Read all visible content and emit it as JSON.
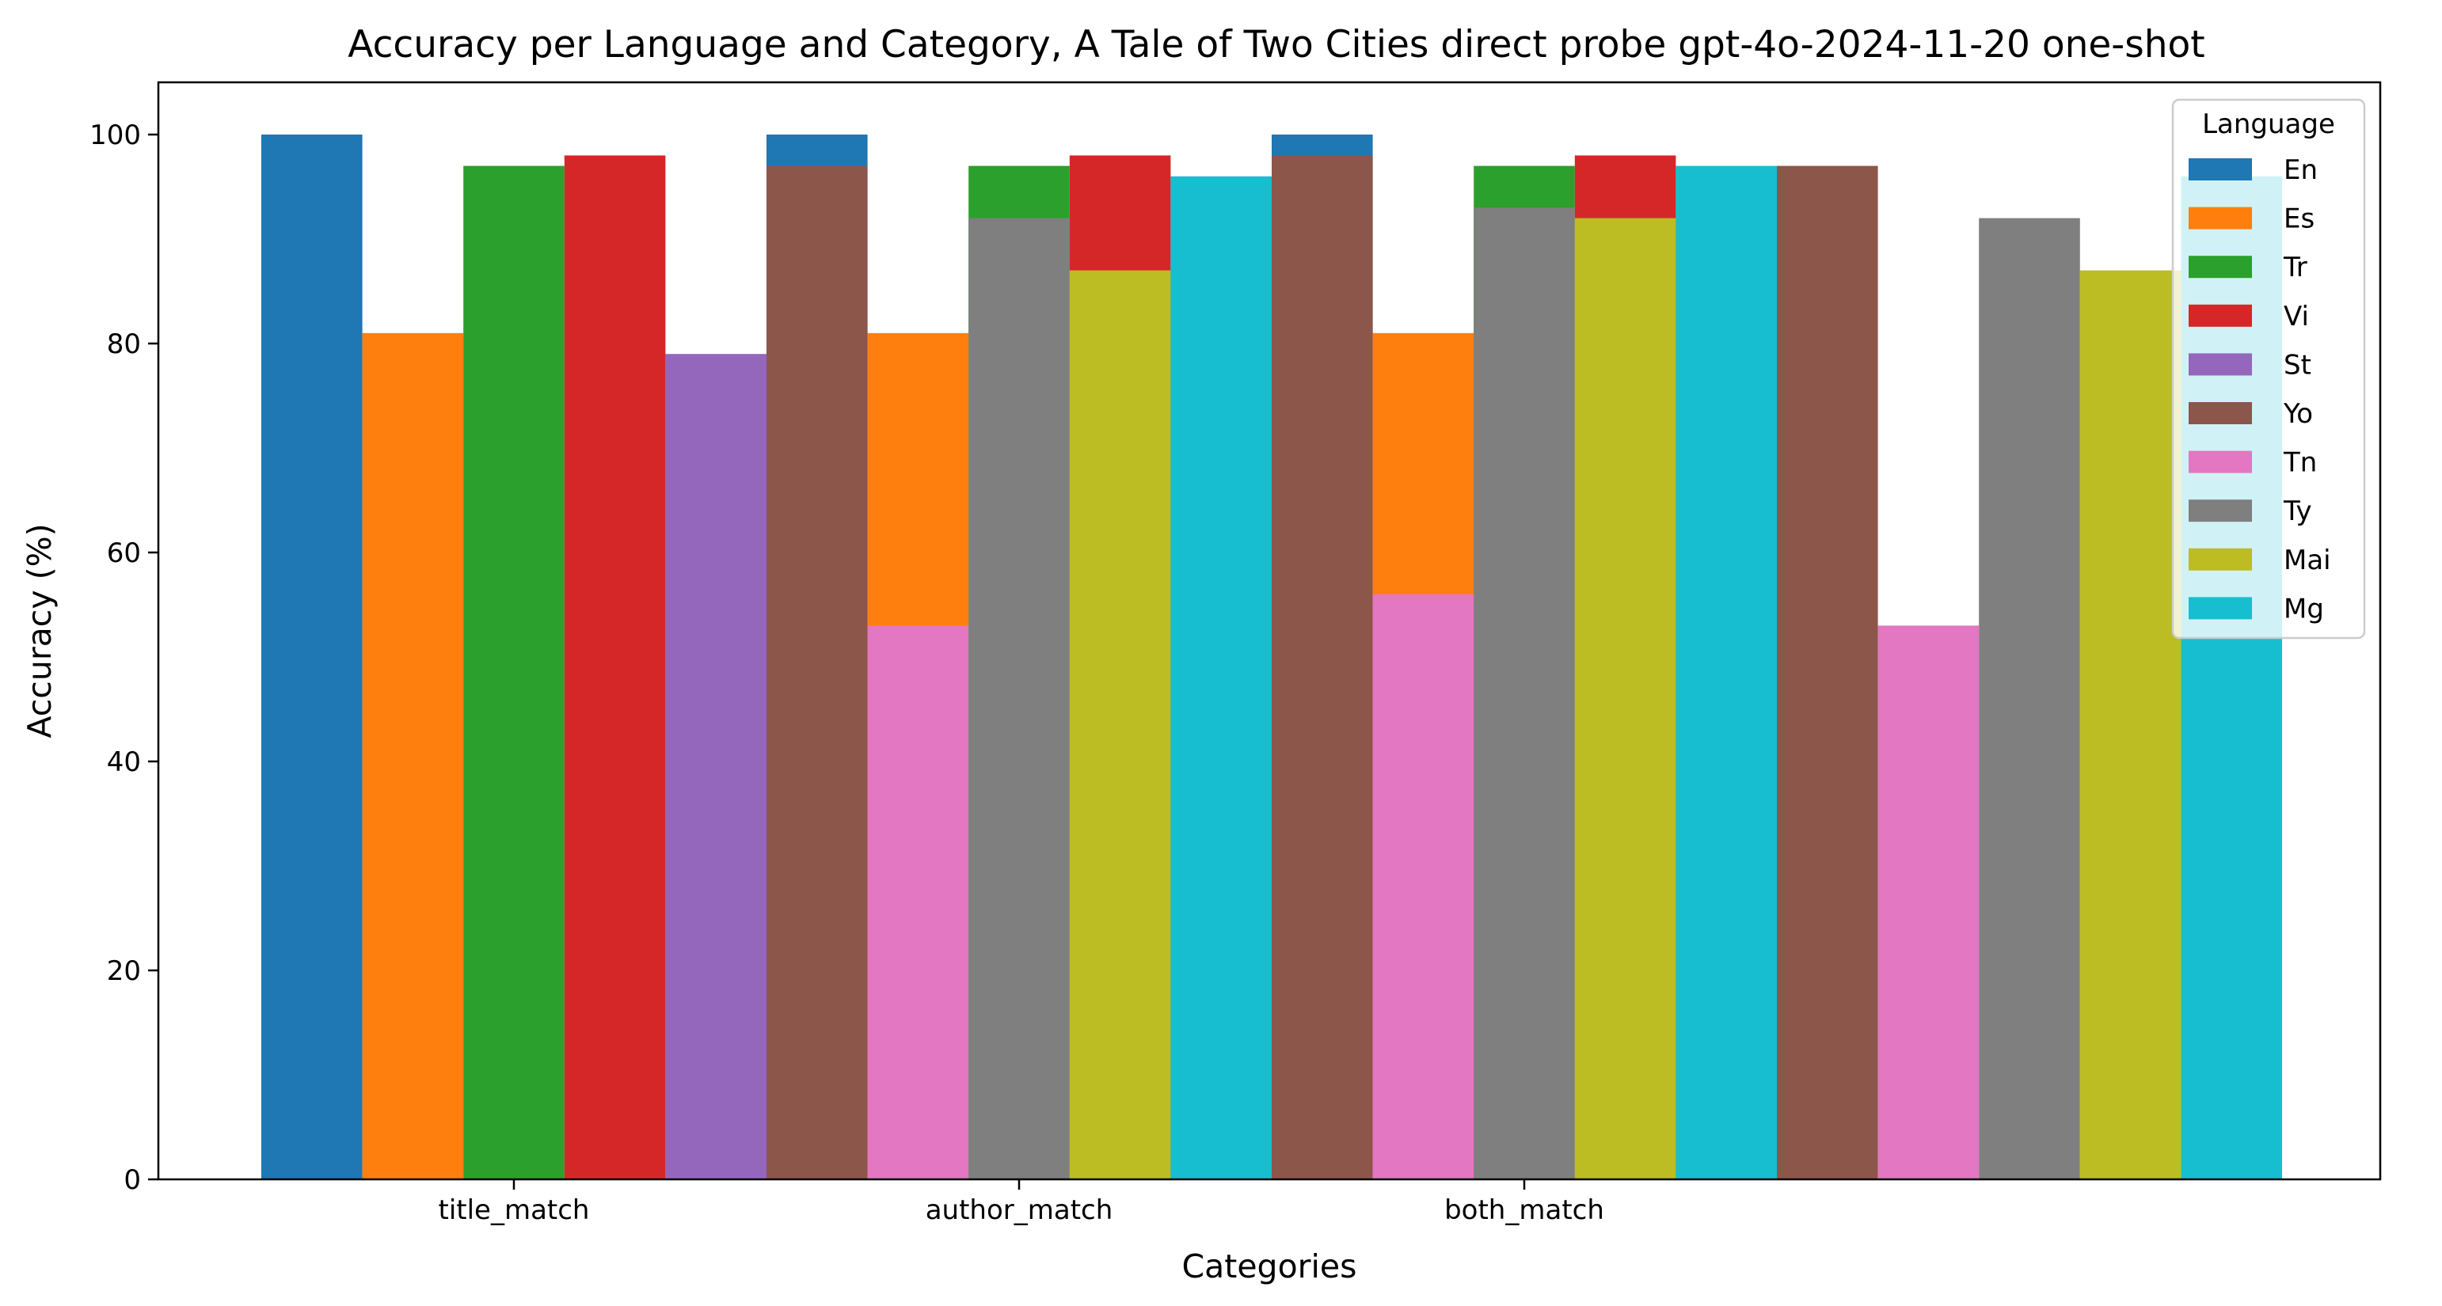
{
  "chart_data": {
    "type": "bar",
    "title": "Accuracy per Language and Category, A Tale of Two Cities direct probe gpt-4o-2024-11-20 one-shot",
    "xlabel": "Categories",
    "ylabel": "Accuracy (%)",
    "ylim": [
      0,
      105
    ],
    "yticks": [
      0,
      20,
      40,
      60,
      80,
      100
    ],
    "categories": [
      "title_match",
      "author_match",
      "both_match"
    ],
    "legend": {
      "title": "Language",
      "placement": "top-right"
    },
    "grid": false,
    "series": [
      {
        "name": "En",
        "color": "#1f77b4",
        "values": [
          100,
          100,
          100
        ]
      },
      {
        "name": "Es",
        "color": "#ff7f0e",
        "values": [
          81,
          81,
          81
        ]
      },
      {
        "name": "Tr",
        "color": "#2ca02c",
        "values": [
          97,
          97,
          97
        ]
      },
      {
        "name": "Vi",
        "color": "#d62728",
        "values": [
          98,
          98,
          98
        ]
      },
      {
        "name": "St",
        "color": "#9467bd",
        "values": [
          79,
          0,
          0
        ]
      },
      {
        "name": "Yo",
        "color": "#8c564b",
        "values": [
          97,
          98,
          97
        ]
      },
      {
        "name": "Tn",
        "color": "#e377c2",
        "values": [
          53,
          56,
          53
        ]
      },
      {
        "name": "Ty",
        "color": "#7f7f7f",
        "values": [
          92,
          93,
          92
        ]
      },
      {
        "name": "Mai",
        "color": "#bcbd22",
        "values": [
          87,
          92,
          87
        ]
      },
      {
        "name": "Mg",
        "color": "#17becf",
        "values": [
          96,
          97,
          96
        ]
      }
    ]
  }
}
